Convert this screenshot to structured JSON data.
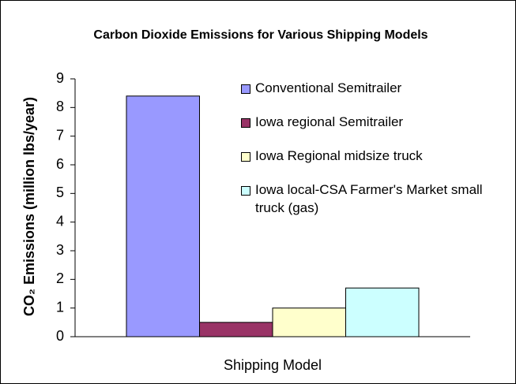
{
  "chart_data": {
    "type": "bar",
    "title": "Carbon Dioxide Emissions for Various Shipping Models",
    "x_label": "Shipping Model",
    "y_label": "CO₂ Emissions (million lbs/year)",
    "categories": [
      null
    ],
    "series": [
      {
        "name": "Conventional Semitrailer",
        "color": "#9999ff",
        "values": [
          8.4
        ]
      },
      {
        "name": "Iowa regional Semitrailer",
        "color": "#993366",
        "values": [
          0.5
        ]
      },
      {
        "name": "Iowa Regional midsize truck",
        "color": "#ffffcc",
        "values": [
          1.0
        ]
      },
      {
        "name": "Iowa local-CSA Farmer's Market small truck (gas)",
        "color": "#ccffff",
        "values": [
          1.7
        ]
      }
    ],
    "ylim": [
      0,
      9
    ],
    "yticks": [
      0,
      1,
      2,
      3,
      4,
      5,
      6,
      7,
      8,
      9
    ],
    "legend": "right",
    "grid": false
  }
}
